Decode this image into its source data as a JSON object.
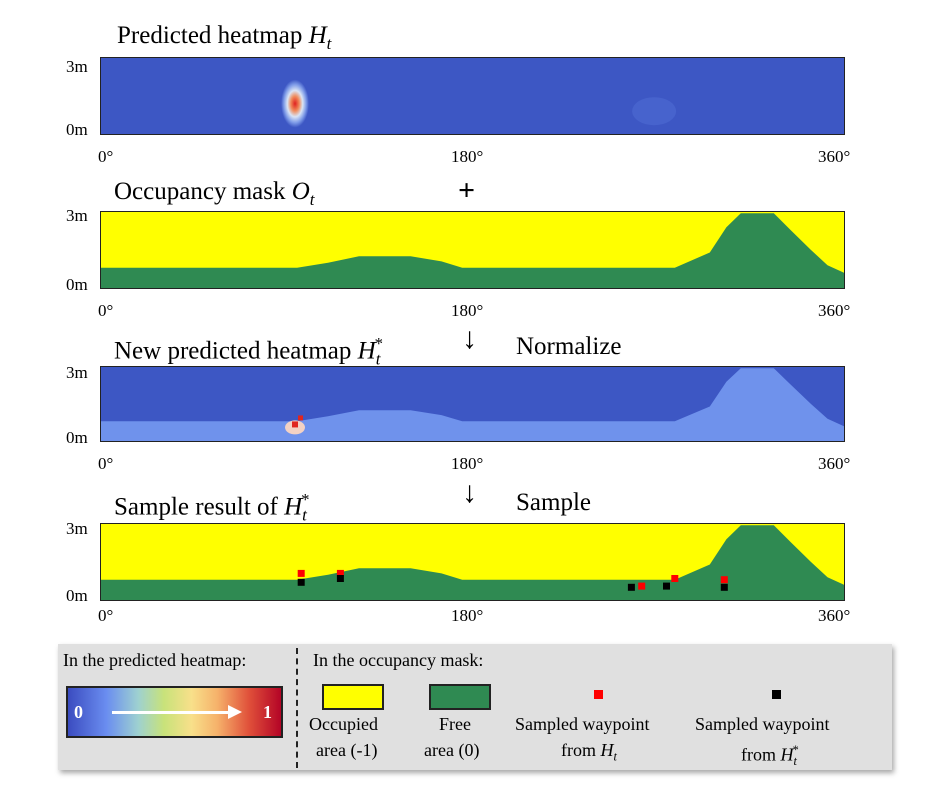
{
  "colors": {
    "heat_bg": "#3d57c4",
    "heat_light": "#6f92ec",
    "heat_hot": "#e0261f",
    "occupied": "#ffff00",
    "free": "#2f8a52",
    "sample_Ht": "#ff0000",
    "sample_Hstar": "#000000"
  },
  "panels": [
    {
      "title_main": "Predicted heatmap ",
      "title_sym": "H",
      "title_sub": "t",
      "title_sup": ""
    },
    {
      "title_main": "Occupancy mask ",
      "title_sym": "O",
      "title_sub": "t",
      "title_sup": ""
    },
    {
      "title_main": "New predicted heatmap ",
      "title_sym": "H",
      "title_sub": "t",
      "title_sup": "*"
    },
    {
      "title_main": "Sample result of ",
      "title_sym": "H",
      "title_sub": "t",
      "title_sup": "*"
    }
  ],
  "axes": {
    "y_top": "3m",
    "y_bottom": "0m",
    "x_ticks": [
      "0°",
      "180°",
      "360°"
    ]
  },
  "operators": {
    "plus": "+",
    "arrow": "↓",
    "normalize": "Normalize",
    "sample": "Sample"
  },
  "chart_data": {
    "type": "heatmap",
    "x_range_deg": [
      0,
      360
    ],
    "y_range_m": [
      0,
      3
    ],
    "heatmap_peak": {
      "angle_deg": 94,
      "height_m": 1.2,
      "value": 1
    },
    "free_area_boundary": [
      {
        "angle_deg": 0,
        "height_m": 0.8
      },
      {
        "angle_deg": 95,
        "height_m": 0.8
      },
      {
        "angle_deg": 110,
        "height_m": 1.0
      },
      {
        "angle_deg": 125,
        "height_m": 1.25
      },
      {
        "angle_deg": 150,
        "height_m": 1.25
      },
      {
        "angle_deg": 165,
        "height_m": 1.05
      },
      {
        "angle_deg": 175,
        "height_m": 0.8
      },
      {
        "angle_deg": 278,
        "height_m": 0.8
      },
      {
        "angle_deg": 295,
        "height_m": 1.4
      },
      {
        "angle_deg": 303,
        "height_m": 2.4
      },
      {
        "angle_deg": 310,
        "height_m": 2.95
      },
      {
        "angle_deg": 326,
        "height_m": 2.95
      },
      {
        "angle_deg": 334,
        "height_m": 2.3
      },
      {
        "angle_deg": 344,
        "height_m": 1.5
      },
      {
        "angle_deg": 352,
        "height_m": 0.9
      },
      {
        "angle_deg": 360,
        "height_m": 0.6
      }
    ],
    "samples_Ht": [
      {
        "angle_deg": 97,
        "height_m": 1.05
      },
      {
        "angle_deg": 116,
        "height_m": 1.05
      },
      {
        "angle_deg": 262,
        "height_m": 0.55
      },
      {
        "angle_deg": 278,
        "height_m": 0.85
      },
      {
        "angle_deg": 302,
        "height_m": 0.8
      }
    ],
    "samples_Hstar": [
      {
        "angle_deg": 97,
        "height_m": 0.7
      },
      {
        "angle_deg": 116,
        "height_m": 0.85
      },
      {
        "angle_deg": 257,
        "height_m": 0.5
      },
      {
        "angle_deg": 274,
        "height_m": 0.55
      },
      {
        "angle_deg": 302,
        "height_m": 0.5
      }
    ]
  },
  "legend": {
    "heatmap_header": "In the predicted heatmap:",
    "mask_header": "In the occupancy mask:",
    "colorbar_min": "0",
    "colorbar_max": "1",
    "occupied_label_line1": "Occupied",
    "occupied_label_line2": "area (-1)",
    "free_label_line1": "Free",
    "free_label_line2": "area (0)",
    "sampled_label_line1": "Sampled waypoint",
    "sampled_Ht_from": "from ",
    "sampled_Hstar_from": "from "
  }
}
